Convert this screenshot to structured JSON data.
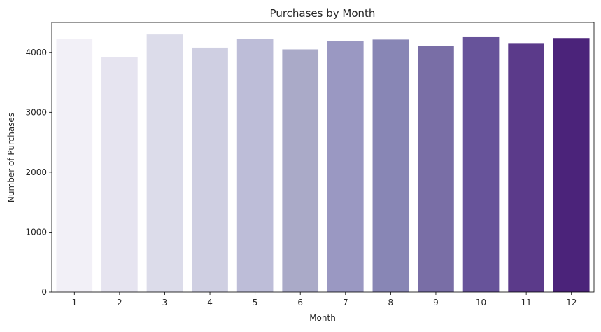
{
  "chart_data": {
    "type": "bar",
    "title": "Purchases by Month",
    "xlabel": "Month",
    "ylabel": "Number of Purchases",
    "categories": [
      "1",
      "2",
      "3",
      "4",
      "5",
      "6",
      "7",
      "8",
      "9",
      "10",
      "11",
      "12"
    ],
    "values": [
      4230,
      3920,
      4300,
      4080,
      4230,
      4050,
      4195,
      4215,
      4110,
      4255,
      4145,
      4240
    ],
    "ylim": [
      0,
      4500
    ],
    "yticks": [
      0,
      1000,
      2000,
      3000,
      4000
    ],
    "grid": false,
    "legend": "none",
    "colors": [
      "#f2f0f7",
      "#e6e4f0",
      "#dcdcea",
      "#cfcfe2",
      "#bdbdd8",
      "#aaaac8",
      "#9a98c2",
      "#8886b5",
      "#796ea6",
      "#67539a",
      "#5b3a8a",
      "#4b237a"
    ]
  }
}
